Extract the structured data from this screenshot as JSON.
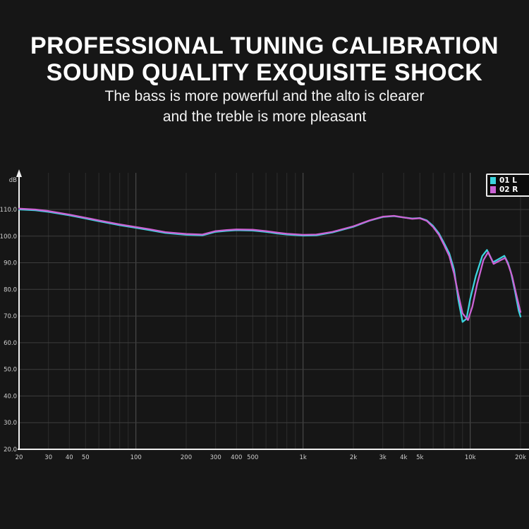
{
  "page": {
    "background": "#161616"
  },
  "header": {
    "title_line1": "PROFESSIONAL TUNING CALIBRATION",
    "title_line2": "SOUND QUALITY EXQUISITE SHOCK",
    "subtitle_line1": "The bass is more powerful and the alto is clearer",
    "subtitle_line2": "and the treble is more pleasant"
  },
  "chart_data": {
    "type": "line",
    "title": "",
    "xlabel": "",
    "ylabel": "dB",
    "x_scale": "log",
    "x_range_hz": [
      20,
      20000
    ],
    "ylim": [
      20,
      124
    ],
    "grid": true,
    "legend_position": "top-right",
    "axis_color": "#f0f0f0",
    "grid_h_color": "#3d3d3d",
    "grid_minor_color": "#2e2e2e",
    "grid_major_color": "#525252",
    "tick_label_color": "#cfcfcf",
    "legend_border_color": "#ececec",
    "legend_bg_color": "#0b0b0b",
    "y_unit_label": "dB",
    "y_ticks": [
      {
        "value": 110,
        "label": "110.0"
      },
      {
        "value": 100,
        "label": "100.0"
      },
      {
        "value": 90,
        "label": "90.0"
      },
      {
        "value": 80,
        "label": "80.0"
      },
      {
        "value": 70,
        "label": "70.0"
      },
      {
        "value": 60,
        "label": "60.0"
      },
      {
        "value": 50,
        "label": "50.0"
      },
      {
        "value": 40,
        "label": "40.0"
      },
      {
        "value": 30,
        "label": "30.0"
      },
      {
        "value": 20,
        "label": "20.0"
      }
    ],
    "x_ticks": [
      {
        "hz": 20,
        "label": "20"
      },
      {
        "hz": 30,
        "label": "30"
      },
      {
        "hz": 40,
        "label": "40"
      },
      {
        "hz": 50,
        "label": "50"
      },
      {
        "hz": 100,
        "label": "100"
      },
      {
        "hz": 200,
        "label": "200"
      },
      {
        "hz": 300,
        "label": "300"
      },
      {
        "hz": 400,
        "label": "400"
      },
      {
        "hz": 500,
        "label": "500"
      },
      {
        "hz": 1000,
        "label": "1k"
      },
      {
        "hz": 2000,
        "label": "2k"
      },
      {
        "hz": 3000,
        "label": "3k"
      },
      {
        "hz": 4000,
        "label": "4k"
      },
      {
        "hz": 5000,
        "label": "5k"
      },
      {
        "hz": 10000,
        "label": "10k"
      },
      {
        "hz": 20000,
        "label": "20k"
      }
    ],
    "grid_minor_hz": [
      30,
      40,
      50,
      60,
      70,
      80,
      90,
      200,
      300,
      400,
      500,
      600,
      700,
      800,
      900,
      2000,
      3000,
      4000,
      5000,
      6000,
      7000,
      8000,
      9000,
      20000
    ],
    "grid_major_hz": [
      100,
      1000,
      10000
    ],
    "grid_db": [
      30,
      40,
      50,
      60,
      70,
      80,
      90,
      100,
      110
    ],
    "series": [
      {
        "name": "01 L",
        "color": "#3bd4de",
        "points": [
          [
            20,
            110
          ],
          [
            25,
            109.7
          ],
          [
            30,
            109.1
          ],
          [
            40,
            107.8
          ],
          [
            50,
            106.6
          ],
          [
            60,
            105.6
          ],
          [
            80,
            104.1
          ],
          [
            100,
            103.1
          ],
          [
            120,
            102.3
          ],
          [
            150,
            101.2
          ],
          [
            200,
            100.5
          ],
          [
            250,
            100.3
          ],
          [
            300,
            101.6
          ],
          [
            350,
            102.0
          ],
          [
            400,
            102.2
          ],
          [
            500,
            102.1
          ],
          [
            600,
            101.6
          ],
          [
            700,
            101.0
          ],
          [
            800,
            100.6
          ],
          [
            1000,
            100.2
          ],
          [
            1200,
            100.3
          ],
          [
            1500,
            101.4
          ],
          [
            2000,
            103.5
          ],
          [
            2500,
            105.8
          ],
          [
            3000,
            107.2
          ],
          [
            3500,
            107.5
          ],
          [
            4000,
            107.0
          ],
          [
            4500,
            106.6
          ],
          [
            5000,
            106.8
          ],
          [
            5500,
            105.9
          ],
          [
            6000,
            103.8
          ],
          [
            6500,
            101.0
          ],
          [
            7000,
            97.2
          ],
          [
            7500,
            93.5
          ],
          [
            8000,
            87.5
          ],
          [
            8500,
            76.0
          ],
          [
            9000,
            67.8
          ],
          [
            9500,
            69.0
          ],
          [
            10000,
            76.5
          ],
          [
            10800,
            85.0
          ],
          [
            11800,
            92.5
          ],
          [
            12600,
            94.8
          ],
          [
            13700,
            90.2
          ],
          [
            15000,
            91.6
          ],
          [
            16000,
            92.6
          ],
          [
            16800,
            90.0
          ],
          [
            17500,
            86.5
          ],
          [
            18500,
            79.5
          ],
          [
            19500,
            72.0
          ],
          [
            20000,
            69.8
          ]
        ]
      },
      {
        "name": "02 R",
        "color": "#cb63d4",
        "points": [
          [
            20,
            110.3
          ],
          [
            25,
            110.0
          ],
          [
            30,
            109.4
          ],
          [
            40,
            108.1
          ],
          [
            50,
            106.9
          ],
          [
            60,
            105.9
          ],
          [
            80,
            104.4
          ],
          [
            100,
            103.4
          ],
          [
            120,
            102.6
          ],
          [
            150,
            101.5
          ],
          [
            200,
            100.8
          ],
          [
            250,
            100.6
          ],
          [
            300,
            101.9
          ],
          [
            350,
            102.3
          ],
          [
            400,
            102.5
          ],
          [
            500,
            102.4
          ],
          [
            600,
            101.9
          ],
          [
            700,
            101.3
          ],
          [
            800,
            100.9
          ],
          [
            1000,
            100.5
          ],
          [
            1200,
            100.6
          ],
          [
            1500,
            101.6
          ],
          [
            2000,
            103.7
          ],
          [
            2500,
            105.9
          ],
          [
            3000,
            107.3
          ],
          [
            3500,
            107.6
          ],
          [
            4000,
            107.0
          ],
          [
            4500,
            106.5
          ],
          [
            5000,
            106.7
          ],
          [
            5500,
            105.7
          ],
          [
            6000,
            103.4
          ],
          [
            6500,
            100.5
          ],
          [
            7000,
            96.5
          ],
          [
            7500,
            92.5
          ],
          [
            8000,
            86.0
          ],
          [
            8500,
            78.0
          ],
          [
            9000,
            71.0
          ],
          [
            9700,
            68.5
          ],
          [
            10300,
            73.5
          ],
          [
            11000,
            82.0
          ],
          [
            12000,
            91.0
          ],
          [
            12800,
            94.0
          ],
          [
            13800,
            89.6
          ],
          [
            15200,
            91.0
          ],
          [
            16200,
            91.8
          ],
          [
            17000,
            88.8
          ],
          [
            17800,
            85.0
          ],
          [
            18800,
            78.5
          ],
          [
            19800,
            72.5
          ],
          [
            20000,
            71.5
          ]
        ]
      }
    ]
  }
}
